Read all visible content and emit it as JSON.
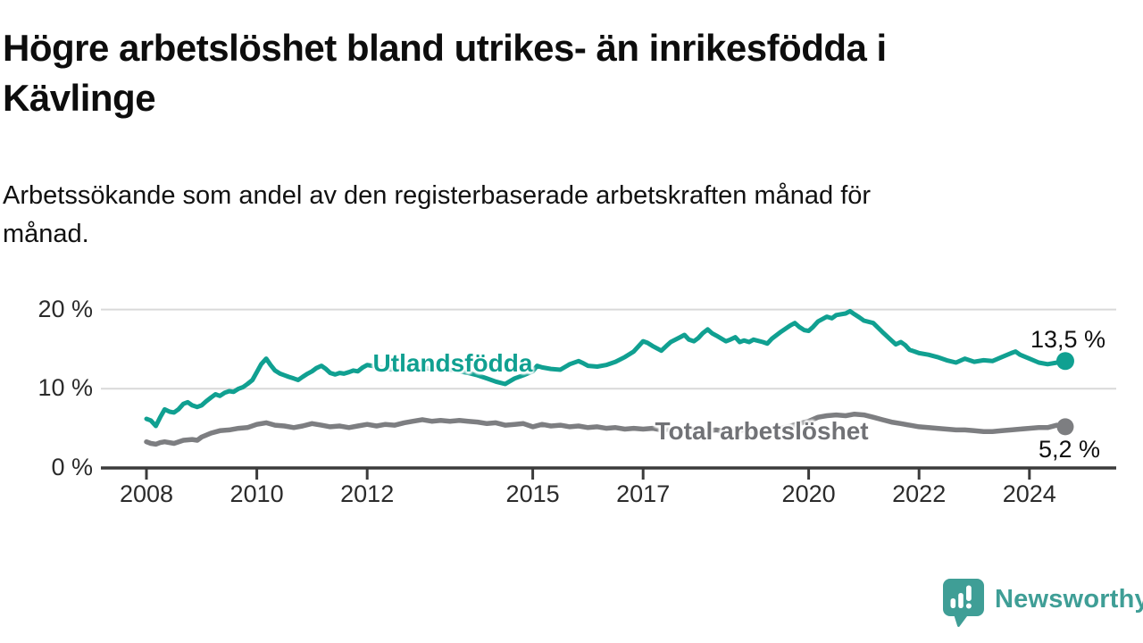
{
  "title": {
    "line1": "Högre arbetslöshet bland utrikes- än inrikesfödda i",
    "line2": "Kävlinge"
  },
  "subtitle": {
    "line1": "Arbetssökande som andel av den registerbaserade arbetskraften månad för",
    "line2": "månad."
  },
  "logo": {
    "text": "Newsworthy",
    "color": "#3f9e96",
    "icon": "speech-bubble-bar-chart"
  },
  "colors": {
    "background": "#ffffff",
    "axis": "#3b3b3b",
    "gridline": "#d9d9d9",
    "tick_text": "#2b2b2b",
    "value_text": "#0f0f0f",
    "series_teal": "#10a091",
    "series_gray": "#7d7e81",
    "gray_label": "#717276"
  },
  "chart_data": {
    "type": "line",
    "title": "Högre arbetslöshet bland utrikes- än inrikesfödda i Kävlinge",
    "subtitle": "Arbetssökande som andel av den registerbaserade arbetskraften månad för månad.",
    "xlabel": "",
    "ylabel": "",
    "x_axis": {
      "ticks": [
        2008,
        2010,
        2012,
        2015,
        2017,
        2020,
        2022,
        2024
      ],
      "range": [
        2007.2,
        2025.5
      ]
    },
    "y_axis": {
      "ticks": [
        {
          "value": 0,
          "label": "0 %"
        },
        {
          "value": 10,
          "label": "10 %"
        },
        {
          "value": 20,
          "label": "20 %"
        }
      ],
      "range": [
        0,
        22.5
      ],
      "gridlines": [
        10,
        20
      ]
    },
    "legend_position": "inline",
    "series": [
      {
        "name": "Utlandsfödda",
        "color": "#10a091",
        "end_label": "13,5 %",
        "end_value": 13.5,
        "inline_label_pos": {
          "x": 2013.55,
          "y": 13.2
        },
        "points": [
          [
            2008.0,
            6.2
          ],
          [
            2008.08,
            6.0
          ],
          [
            2008.17,
            5.3
          ],
          [
            2008.25,
            6.4
          ],
          [
            2008.33,
            7.4
          ],
          [
            2008.42,
            7.1
          ],
          [
            2008.5,
            7.0
          ],
          [
            2008.58,
            7.4
          ],
          [
            2008.67,
            8.1
          ],
          [
            2008.75,
            8.3
          ],
          [
            2008.83,
            7.9
          ],
          [
            2008.92,
            7.7
          ],
          [
            2009.0,
            7.9
          ],
          [
            2009.08,
            8.4
          ],
          [
            2009.17,
            8.9
          ],
          [
            2009.25,
            9.3
          ],
          [
            2009.33,
            9.1
          ],
          [
            2009.42,
            9.5
          ],
          [
            2009.5,
            9.7
          ],
          [
            2009.58,
            9.6
          ],
          [
            2009.67,
            10.0
          ],
          [
            2009.75,
            10.2
          ],
          [
            2009.83,
            10.6
          ],
          [
            2009.92,
            11.1
          ],
          [
            2010.0,
            12.1
          ],
          [
            2010.08,
            13.1
          ],
          [
            2010.17,
            13.8
          ],
          [
            2010.25,
            13.0
          ],
          [
            2010.33,
            12.3
          ],
          [
            2010.42,
            11.9
          ],
          [
            2010.5,
            11.7
          ],
          [
            2010.58,
            11.5
          ],
          [
            2010.67,
            11.3
          ],
          [
            2010.75,
            11.1
          ],
          [
            2010.83,
            11.5
          ],
          [
            2010.92,
            11.9
          ],
          [
            2011.0,
            12.2
          ],
          [
            2011.08,
            12.6
          ],
          [
            2011.17,
            12.9
          ],
          [
            2011.25,
            12.5
          ],
          [
            2011.33,
            12.0
          ],
          [
            2011.42,
            11.8
          ],
          [
            2011.5,
            12.0
          ],
          [
            2011.58,
            11.9
          ],
          [
            2011.67,
            12.1
          ],
          [
            2011.75,
            12.3
          ],
          [
            2011.83,
            12.2
          ],
          [
            2011.92,
            12.7
          ],
          [
            2012.0,
            13.0
          ],
          [
            2012.17,
            12.8
          ],
          [
            2012.33,
            12.5
          ],
          [
            2012.5,
            12.4
          ],
          [
            2012.67,
            12.7
          ],
          [
            2012.83,
            12.5
          ],
          [
            2013.0,
            12.7
          ],
          [
            2013.17,
            12.5
          ],
          [
            2013.33,
            12.6
          ],
          [
            2013.5,
            12.4
          ],
          [
            2013.67,
            12.2
          ],
          [
            2013.83,
            12.0
          ],
          [
            2014.0,
            11.7
          ],
          [
            2014.17,
            11.3
          ],
          [
            2014.33,
            10.9
          ],
          [
            2014.5,
            10.6
          ],
          [
            2014.67,
            11.3
          ],
          [
            2014.83,
            11.7
          ],
          [
            2015.0,
            12.2
          ],
          [
            2015.08,
            12.9
          ],
          [
            2015.17,
            12.7
          ],
          [
            2015.33,
            12.5
          ],
          [
            2015.5,
            12.4
          ],
          [
            2015.67,
            13.1
          ],
          [
            2015.83,
            13.5
          ],
          [
            2015.92,
            13.2
          ],
          [
            2016.0,
            12.9
          ],
          [
            2016.17,
            12.8
          ],
          [
            2016.33,
            13.0
          ],
          [
            2016.5,
            13.4
          ],
          [
            2016.67,
            14.0
          ],
          [
            2016.83,
            14.7
          ],
          [
            2017.0,
            16.0
          ],
          [
            2017.08,
            15.8
          ],
          [
            2017.17,
            15.4
          ],
          [
            2017.33,
            14.8
          ],
          [
            2017.42,
            15.4
          ],
          [
            2017.5,
            15.9
          ],
          [
            2017.67,
            16.5
          ],
          [
            2017.75,
            16.8
          ],
          [
            2017.83,
            16.2
          ],
          [
            2017.92,
            16.0
          ],
          [
            2018.0,
            16.4
          ],
          [
            2018.08,
            17.0
          ],
          [
            2018.17,
            17.5
          ],
          [
            2018.25,
            17.0
          ],
          [
            2018.33,
            16.7
          ],
          [
            2018.5,
            16.0
          ],
          [
            2018.58,
            16.2
          ],
          [
            2018.67,
            16.5
          ],
          [
            2018.75,
            15.9
          ],
          [
            2018.83,
            16.1
          ],
          [
            2018.92,
            15.9
          ],
          [
            2019.0,
            16.2
          ],
          [
            2019.17,
            15.9
          ],
          [
            2019.25,
            15.7
          ],
          [
            2019.33,
            16.3
          ],
          [
            2019.5,
            17.2
          ],
          [
            2019.67,
            18.0
          ],
          [
            2019.75,
            18.3
          ],
          [
            2019.83,
            17.8
          ],
          [
            2019.92,
            17.4
          ],
          [
            2020.0,
            17.3
          ],
          [
            2020.08,
            17.8
          ],
          [
            2020.17,
            18.5
          ],
          [
            2020.33,
            19.1
          ],
          [
            2020.42,
            18.9
          ],
          [
            2020.5,
            19.3
          ],
          [
            2020.67,
            19.5
          ],
          [
            2020.75,
            19.8
          ],
          [
            2020.83,
            19.4
          ],
          [
            2020.92,
            19.0
          ],
          [
            2021.0,
            18.6
          ],
          [
            2021.17,
            18.3
          ],
          [
            2021.33,
            17.2
          ],
          [
            2021.5,
            16.1
          ],
          [
            2021.58,
            15.6
          ],
          [
            2021.67,
            15.9
          ],
          [
            2021.75,
            15.5
          ],
          [
            2021.83,
            14.9
          ],
          [
            2021.92,
            14.7
          ],
          [
            2022.0,
            14.5
          ],
          [
            2022.17,
            14.3
          ],
          [
            2022.33,
            14.0
          ],
          [
            2022.5,
            13.6
          ],
          [
            2022.67,
            13.3
          ],
          [
            2022.83,
            13.8
          ],
          [
            2023.0,
            13.4
          ],
          [
            2023.17,
            13.6
          ],
          [
            2023.33,
            13.5
          ],
          [
            2023.5,
            14.0
          ],
          [
            2023.67,
            14.5
          ],
          [
            2023.75,
            14.7
          ],
          [
            2023.83,
            14.3
          ],
          [
            2024.0,
            13.8
          ],
          [
            2024.17,
            13.3
          ],
          [
            2024.33,
            13.1
          ],
          [
            2024.5,
            13.3
          ],
          [
            2024.65,
            13.5
          ]
        ]
      },
      {
        "name": "Total arbetslöshet",
        "color": "#7d7e81",
        "end_label": "5,2 %",
        "end_value": 5.2,
        "inline_label_pos": {
          "x": 2019.15,
          "y": 4.6
        },
        "points": [
          [
            2008.0,
            3.3
          ],
          [
            2008.08,
            3.1
          ],
          [
            2008.17,
            3.0
          ],
          [
            2008.25,
            3.2
          ],
          [
            2008.33,
            3.3
          ],
          [
            2008.5,
            3.1
          ],
          [
            2008.67,
            3.5
          ],
          [
            2008.83,
            3.6
          ],
          [
            2008.92,
            3.5
          ],
          [
            2009.0,
            3.9
          ],
          [
            2009.17,
            4.4
          ],
          [
            2009.33,
            4.7
          ],
          [
            2009.5,
            4.8
          ],
          [
            2009.67,
            5.0
          ],
          [
            2009.83,
            5.1
          ],
          [
            2010.0,
            5.5
          ],
          [
            2010.17,
            5.7
          ],
          [
            2010.33,
            5.4
          ],
          [
            2010.5,
            5.3
          ],
          [
            2010.67,
            5.1
          ],
          [
            2010.83,
            5.3
          ],
          [
            2011.0,
            5.6
          ],
          [
            2011.17,
            5.4
          ],
          [
            2011.33,
            5.2
          ],
          [
            2011.5,
            5.3
          ],
          [
            2011.67,
            5.1
          ],
          [
            2011.83,
            5.3
          ],
          [
            2012.0,
            5.5
          ],
          [
            2012.17,
            5.3
          ],
          [
            2012.33,
            5.5
          ],
          [
            2012.5,
            5.4
          ],
          [
            2012.67,
            5.7
          ],
          [
            2012.83,
            5.9
          ],
          [
            2013.0,
            6.1
          ],
          [
            2013.17,
            5.9
          ],
          [
            2013.33,
            6.0
          ],
          [
            2013.5,
            5.9
          ],
          [
            2013.67,
            6.0
          ],
          [
            2013.83,
            5.9
          ],
          [
            2014.0,
            5.8
          ],
          [
            2014.17,
            5.6
          ],
          [
            2014.33,
            5.7
          ],
          [
            2014.5,
            5.4
          ],
          [
            2014.67,
            5.5
          ],
          [
            2014.83,
            5.6
          ],
          [
            2015.0,
            5.2
          ],
          [
            2015.17,
            5.5
          ],
          [
            2015.33,
            5.3
          ],
          [
            2015.5,
            5.4
          ],
          [
            2015.67,
            5.2
          ],
          [
            2015.83,
            5.3
          ],
          [
            2016.0,
            5.1
          ],
          [
            2016.17,
            5.2
          ],
          [
            2016.33,
            5.0
          ],
          [
            2016.5,
            5.1
          ],
          [
            2016.67,
            4.9
          ],
          [
            2016.83,
            5.0
          ],
          [
            2017.0,
            4.9
          ],
          [
            2017.17,
            5.0
          ],
          [
            2017.33,
            4.8
          ],
          [
            2017.5,
            4.9
          ],
          [
            2017.67,
            4.8
          ],
          [
            2017.83,
            4.9
          ],
          [
            2018.0,
            4.8
          ],
          [
            2018.17,
            4.7
          ],
          [
            2018.33,
            4.8
          ],
          [
            2018.5,
            4.6
          ],
          [
            2018.67,
            4.7
          ],
          [
            2018.83,
            4.8
          ],
          [
            2019.0,
            4.7
          ],
          [
            2019.17,
            4.8
          ],
          [
            2019.33,
            4.9
          ],
          [
            2019.5,
            5.0
          ],
          [
            2019.67,
            5.3
          ],
          [
            2019.83,
            5.6
          ],
          [
            2020.0,
            5.9
          ],
          [
            2020.17,
            6.4
          ],
          [
            2020.33,
            6.6
          ],
          [
            2020.5,
            6.7
          ],
          [
            2020.67,
            6.6
          ],
          [
            2020.83,
            6.8
          ],
          [
            2021.0,
            6.7
          ],
          [
            2021.17,
            6.4
          ],
          [
            2021.33,
            6.1
          ],
          [
            2021.5,
            5.8
          ],
          [
            2021.67,
            5.6
          ],
          [
            2021.83,
            5.4
          ],
          [
            2022.0,
            5.2
          ],
          [
            2022.17,
            5.1
          ],
          [
            2022.33,
            5.0
          ],
          [
            2022.5,
            4.9
          ],
          [
            2022.67,
            4.8
          ],
          [
            2022.83,
            4.8
          ],
          [
            2023.0,
            4.7
          ],
          [
            2023.17,
            4.6
          ],
          [
            2023.33,
            4.6
          ],
          [
            2023.5,
            4.7
          ],
          [
            2023.67,
            4.8
          ],
          [
            2023.83,
            4.9
          ],
          [
            2024.0,
            5.0
          ],
          [
            2024.17,
            5.1
          ],
          [
            2024.33,
            5.1
          ],
          [
            2024.5,
            5.4
          ],
          [
            2024.65,
            5.2
          ]
        ]
      }
    ]
  }
}
